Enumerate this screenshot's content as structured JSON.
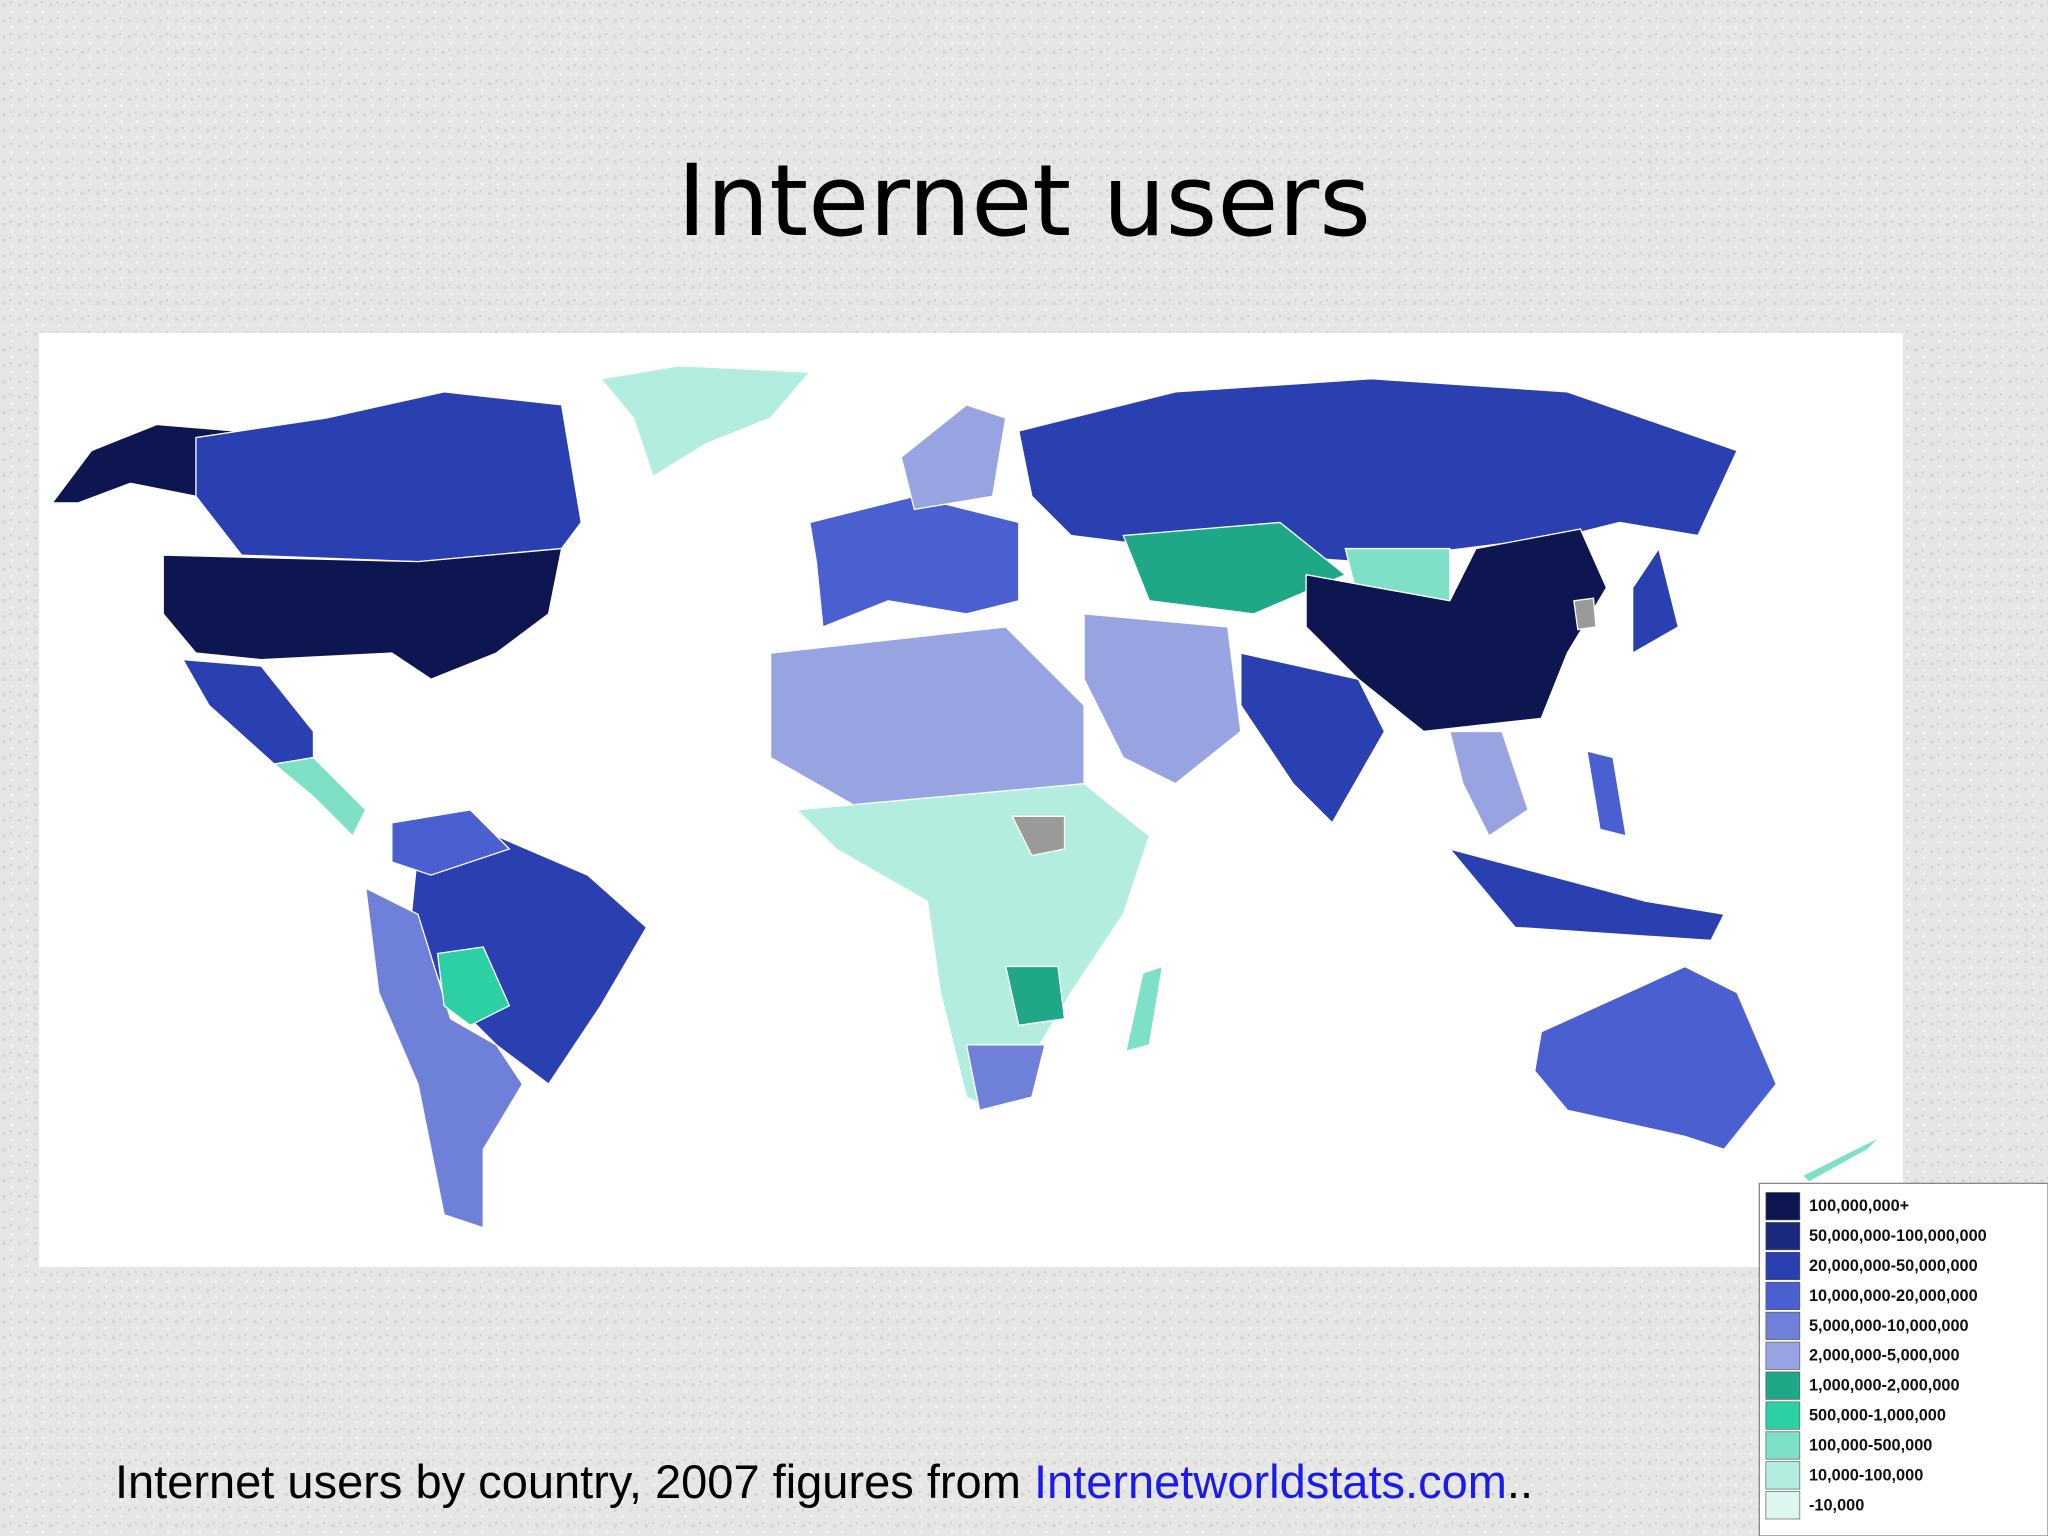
{
  "title": "Internet users",
  "caption": {
    "text": "Internet users by country, 2007 figures from ",
    "link": "Internetworldstats.com",
    "suffix": ".."
  },
  "legend": [
    {
      "label": "100,000,000+",
      "color": "#0d1650"
    },
    {
      "label": "50,000,000-100,000,000",
      "color": "#1b2a7e"
    },
    {
      "label": "20,000,000-50,000,000",
      "color": "#2a3fb0"
    },
    {
      "label": "10,000,000-20,000,000",
      "color": "#4a5fd0"
    },
    {
      "label": "5,000,000-10,000,000",
      "color": "#6f80d8"
    },
    {
      "label": "2,000,000-5,000,000",
      "color": "#98a4e2"
    },
    {
      "label": "1,000,000-2,000,000",
      "color": "#1fa888"
    },
    {
      "label": "500,000-1,000,000",
      "color": "#2cd0a4"
    },
    {
      "label": "100,000-500,000",
      "color": "#7ee0c6"
    },
    {
      "label": "10,000-100,000",
      "color": "#b2ede0"
    },
    {
      "label": "-10,000",
      "color": "#dcf7f0"
    }
  ]
}
